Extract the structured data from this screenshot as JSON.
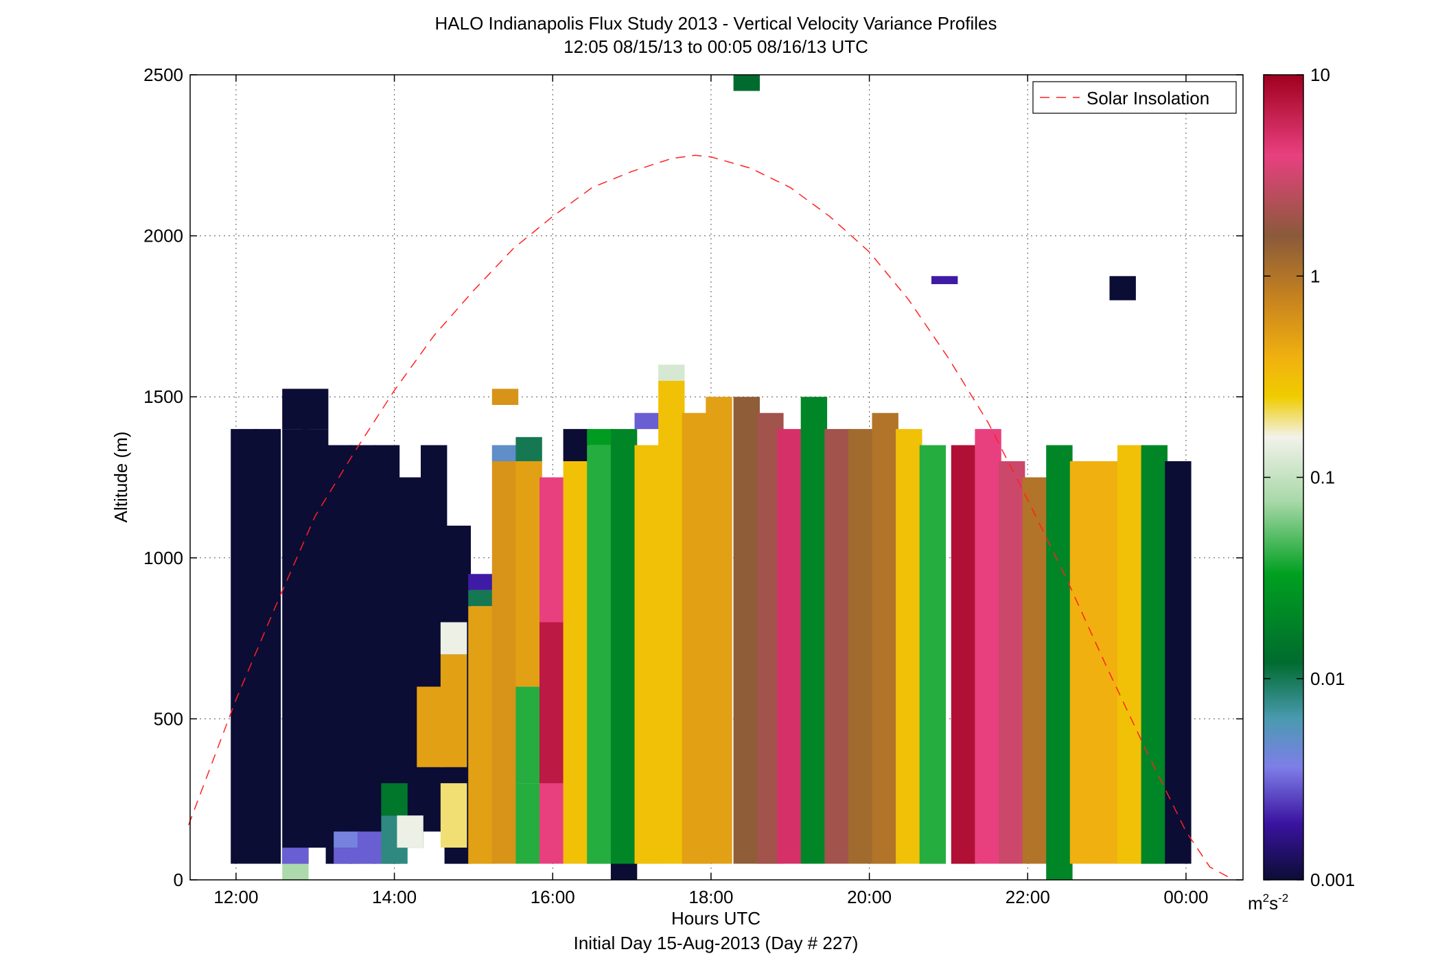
{
  "figure": {
    "title_line1": "HALO Indianapolis Flux Study 2013 - Vertical Velocity Variance Profiles",
    "title_line2": "12:05 08/15/13 to 00:05 08/16/13  UTC",
    "xlabel": "Hours UTC",
    "xlabel2": "Initial Day 15-Aug-2013 (Day # 227)",
    "ylabel": "Altitude (m)",
    "legend_label": "Solar Insolation",
    "colorbar_unit_base": "m",
    "colorbar_unit_sup1": "2",
    "colorbar_unit_mid": "s",
    "colorbar_unit_sup2": "-2"
  },
  "chart_data": {
    "type": "heatmap",
    "title": "HALO Indianapolis Flux Study 2013 - Vertical Velocity Variance Profiles",
    "subtitle": "12:05 08/15/13 to 00:05 08/16/13  UTC",
    "xlabel": "Hours UTC",
    "ylabel": "Altitude (m)",
    "xlim": [
      11.42,
      24.72
    ],
    "ylim": [
      0,
      2500
    ],
    "x_ticks": [
      12,
      14,
      16,
      18,
      20,
      22,
      24
    ],
    "x_tick_labels": [
      "12:00",
      "14:00",
      "16:00",
      "18:00",
      "20:00",
      "22:00",
      "00:00"
    ],
    "y_ticks": [
      0,
      500,
      1000,
      1500,
      2000,
      2500
    ],
    "y_tick_labels": [
      "0",
      "500",
      "1000",
      "1500",
      "2000",
      "2500"
    ],
    "grid": true,
    "legend_position": "top-right",
    "colorbar": {
      "scale": "log",
      "range": [
        0.001,
        10
      ],
      "tick_values": [
        0.001,
        0.01,
        0.1,
        1,
        10
      ],
      "tick_labels": [
        "0.001",
        "0.01",
        "0.1",
        "1",
        "10"
      ],
      "colors": [
        "#0b0d35",
        "#3a13a0",
        "#7e7ee8",
        "#4a9ab0",
        "#006b2e",
        "#00a020",
        "#a8d8a8",
        "#f2f2ea",
        "#f0cc00",
        "#f0b010",
        "#c8841e",
        "#8a5a3a",
        "#e84080",
        "#a0001e"
      ],
      "color_positions": [
        0.0,
        0.07,
        0.14,
        0.2,
        0.27,
        0.38,
        0.47,
        0.55,
        0.6,
        0.65,
        0.72,
        0.8,
        0.9,
        1.0
      ]
    },
    "series": [
      {
        "name": "Solar Insolation",
        "style": "dashed",
        "color": "#ff2020",
        "x": [
          11.4,
          12.0,
          12.5,
          13.0,
          13.5,
          14.0,
          14.5,
          15.0,
          15.5,
          16.0,
          16.5,
          17.0,
          17.5,
          17.8,
          18.0,
          18.5,
          19.0,
          19.5,
          20.0,
          20.5,
          21.0,
          21.5,
          22.0,
          22.5,
          23.0,
          23.5,
          24.0,
          24.3,
          24.6
        ],
        "y": [
          170,
          560,
          850,
          1130,
          1330,
          1520,
          1690,
          1830,
          1960,
          2060,
          2150,
          2200,
          2240,
          2250,
          2245,
          2210,
          2150,
          2060,
          1950,
          1800,
          1620,
          1420,
          1180,
          930,
          660,
          400,
          150,
          40,
          0
        ]
      }
    ],
    "bin_width_hours": 0.333,
    "bin_height_m": 50,
    "profiles_description": "columns of variance values (m2 s-2) per time bin; values listed as [time_hours, altitude_m_bottom, altitude_m_top, variance]",
    "cells": [
      [
        12.1,
        50,
        1400,
        0.001
      ],
      [
        12.4,
        50,
        1400,
        0.001
      ],
      [
        12.75,
        1400,
        1525,
        0.001
      ],
      [
        12.75,
        50,
        1400,
        0.001
      ],
      [
        13.0,
        1400,
        1525,
        0.001
      ],
      [
        13.0,
        100,
        1400,
        0.001
      ],
      [
        13.3,
        50,
        1350,
        0.001
      ],
      [
        13.6,
        50,
        1350,
        0.001
      ],
      [
        13.9,
        50,
        1350,
        0.001
      ],
      [
        14.2,
        100,
        1250,
        0.001
      ],
      [
        14.5,
        150,
        1350,
        0.001
      ],
      [
        14.8,
        50,
        1100,
        0.001
      ],
      [
        12.75,
        0,
        50,
        0.08
      ],
      [
        12.75,
        50,
        100,
        0.003
      ],
      [
        13.4,
        50,
        100,
        0.003
      ],
      [
        13.4,
        100,
        150,
        0.004
      ],
      [
        13.7,
        50,
        150,
        0.003
      ],
      [
        14.0,
        50,
        200,
        0.008
      ],
      [
        14.0,
        200,
        300,
        0.015
      ],
      [
        14.2,
        100,
        200,
        0.15
      ],
      [
        14.45,
        350,
        600,
        0.5
      ],
      [
        14.75,
        100,
        300,
        0.2
      ],
      [
        14.75,
        350,
        700,
        0.5
      ],
      [
        14.75,
        700,
        800,
        0.15
      ],
      [
        15.1,
        50,
        850,
        0.5
      ],
      [
        15.1,
        850,
        900,
        0.01
      ],
      [
        15.1,
        900,
        950,
        0.002
      ],
      [
        15.4,
        1475,
        1525,
        0.6
      ],
      [
        15.4,
        50,
        1300,
        0.6
      ],
      [
        15.4,
        1300,
        1350,
        0.005
      ],
      [
        15.7,
        50,
        300,
        0.04
      ],
      [
        15.7,
        300,
        600,
        0.04
      ],
      [
        15.7,
        600,
        1300,
        0.5
      ],
      [
        15.7,
        1300,
        1375,
        0.01
      ],
      [
        16.0,
        50,
        1250,
        4.0
      ],
      [
        16.0,
        300,
        800,
        7.0
      ],
      [
        16.3,
        50,
        1300,
        0.3
      ],
      [
        16.3,
        1300,
        1400,
        0.001
      ],
      [
        16.6,
        50,
        1350,
        0.04
      ],
      [
        16.6,
        1350,
        1400,
        0.03
      ],
      [
        16.9,
        50,
        1400,
        0.02
      ],
      [
        16.9,
        0,
        50,
        0.001
      ],
      [
        17.2,
        50,
        1350,
        0.3
      ],
      [
        17.2,
        1400,
        1450,
        0.003
      ],
      [
        17.5,
        50,
        1550,
        0.3
      ],
      [
        17.5,
        1550,
        1600,
        0.12
      ],
      [
        17.8,
        50,
        1450,
        0.5
      ],
      [
        18.1,
        50,
        1500,
        0.5
      ],
      [
        18.45,
        50,
        1500,
        1.5
      ],
      [
        18.45,
        2450,
        2500,
        0.012
      ],
      [
        18.75,
        50,
        1450,
        2.0
      ],
      [
        19.0,
        50,
        1400,
        5.0
      ],
      [
        19.3,
        50,
        1500,
        0.02
      ],
      [
        19.6,
        50,
        1400,
        2.0
      ],
      [
        19.9,
        50,
        1400,
        1.2
      ],
      [
        20.2,
        50,
        1450,
        1.0
      ],
      [
        20.5,
        50,
        1400,
        0.3
      ],
      [
        20.8,
        50,
        1350,
        0.04
      ],
      [
        20.95,
        1850,
        1875,
        0.002
      ],
      [
        21.2,
        50,
        1350,
        8.0
      ],
      [
        21.5,
        50,
        1400,
        4.0
      ],
      [
        21.8,
        50,
        1300,
        3.0
      ],
      [
        22.1,
        50,
        1250,
        1.0
      ],
      [
        22.4,
        0,
        1350,
        0.02
      ],
      [
        22.7,
        50,
        1300,
        0.4
      ],
      [
        23.0,
        50,
        1300,
        0.4
      ],
      [
        23.3,
        50,
        1350,
        0.3
      ],
      [
        23.2,
        1800,
        1875,
        0.001
      ],
      [
        23.6,
        50,
        1350,
        0.02
      ],
      [
        23.9,
        50,
        1300,
        0.001
      ]
    ]
  }
}
